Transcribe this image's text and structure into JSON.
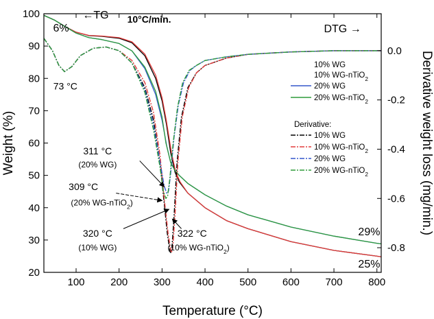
{
  "chart_data": {
    "type": "line",
    "subtitle": "10°C/min.",
    "xlabel": "Temperature (°C)",
    "ylabel_left": "Weight (%)",
    "ylabel_right": "Derivative weight loss (mg/min.)",
    "xlim": [
      25,
      810
    ],
    "ylim_left": [
      20,
      100
    ],
    "ylim_right": [
      -0.9,
      0.15
    ],
    "x_ticks": [
      100,
      200,
      300,
      400,
      500,
      600,
      700,
      800
    ],
    "y_ticks_left": [
      20,
      30,
      40,
      50,
      60,
      70,
      80,
      90,
      100
    ],
    "y_ticks_right": [
      -0.8,
      -0.6,
      -0.4,
      -0.2,
      0.0
    ],
    "y_ticks_right_labels": [
      "-0.8",
      "-0.6",
      "-0.4",
      "-0.2",
      "0.0"
    ],
    "grid": false,
    "legend_position": "right",
    "legend": {
      "tg_entries": [
        "10% WG",
        "10% WG-nTiO2",
        "20% WG",
        "20% WG-nTiO2"
      ],
      "derivative_title": "Derivative:",
      "dtg_entries": [
        "10% WG",
        "10% WG-nTiO2",
        "20% WG",
        "20% WG-nTiO2"
      ]
    },
    "series": [
      {
        "name": "10% WG",
        "kind": "TG",
        "axis": "left",
        "color": "#000000",
        "dash": "solid",
        "x": [
          25,
          50,
          75,
          100,
          130,
          160,
          200,
          230,
          260,
          285,
          300,
          310,
          320,
          330,
          340,
          360,
          400,
          450,
          500,
          600,
          700,
          800,
          810
        ],
        "y": [
          99.5,
          98.0,
          96.0,
          94.3,
          93.2,
          93.0,
          92.4,
          91.0,
          87.0,
          80.0,
          73.0,
          66.0,
          57.0,
          51.0,
          48.0,
          44.5,
          40.0,
          36.0,
          33.5,
          29.5,
          26.8,
          25.0,
          24.8
        ]
      },
      {
        "name": "10% WG-nTiO2",
        "kind": "TG",
        "axis": "left",
        "color": "#e23b3b",
        "dash": "solid",
        "x": [
          25,
          50,
          75,
          100,
          130,
          160,
          200,
          230,
          260,
          285,
          300,
          310,
          322,
          332,
          342,
          360,
          400,
          450,
          500,
          600,
          700,
          800,
          810
        ],
        "y": [
          99.5,
          98.0,
          96.0,
          94.3,
          93.3,
          93.1,
          92.6,
          91.3,
          87.5,
          81.0,
          74.0,
          67.0,
          57.0,
          51.0,
          48.0,
          44.5,
          40.0,
          36.0,
          33.5,
          29.5,
          26.8,
          25.0,
          24.8
        ]
      },
      {
        "name": "20% WG",
        "kind": "TG",
        "axis": "left",
        "color": "#3357cc",
        "dash": "solid",
        "x": [
          25,
          50,
          75,
          100,
          130,
          160,
          200,
          230,
          260,
          285,
          300,
          311,
          320,
          330,
          340,
          360,
          400,
          450,
          500,
          600,
          700,
          800,
          810
        ],
        "y": [
          99.5,
          98.0,
          96.0,
          94.0,
          92.6,
          92.0,
          90.8,
          88.5,
          83.0,
          75.0,
          67.0,
          59.0,
          54.0,
          51.5,
          50.0,
          47.5,
          44.0,
          40.5,
          37.8,
          34.0,
          31.2,
          29.0,
          28.8
        ]
      },
      {
        "name": "20% WG-nTiO2",
        "kind": "TG",
        "axis": "left",
        "color": "#2e9c3a",
        "dash": "solid",
        "x": [
          25,
          50,
          75,
          100,
          130,
          160,
          200,
          230,
          260,
          285,
          300,
          309,
          320,
          330,
          340,
          360,
          400,
          450,
          500,
          600,
          700,
          800,
          810
        ],
        "y": [
          99.5,
          98.0,
          96.0,
          94.0,
          92.6,
          92.0,
          90.8,
          88.5,
          83.5,
          76.0,
          68.0,
          60.0,
          54.0,
          51.5,
          50.0,
          47.5,
          44.0,
          40.5,
          37.8,
          34.0,
          31.2,
          29.0,
          28.8
        ]
      },
      {
        "name": "10% WG",
        "kind": "DTG",
        "axis": "right",
        "color": "#000000",
        "dash": "dashdot",
        "x": [
          25,
          45,
          60,
          73,
          90,
          110,
          140,
          170,
          200,
          230,
          260,
          280,
          295,
          305,
          312,
          318,
          320,
          323,
          328,
          335,
          345,
          360,
          380,
          400,
          450,
          500,
          600,
          700,
          800,
          810
        ],
        "y": [
          0.05,
          0.0,
          -0.06,
          -0.085,
          -0.065,
          -0.02,
          0.01,
          0.015,
          0.0,
          -0.05,
          -0.15,
          -0.28,
          -0.45,
          -0.62,
          -0.74,
          -0.81,
          -0.82,
          -0.8,
          -0.67,
          -0.45,
          -0.27,
          -0.15,
          -0.09,
          -0.06,
          -0.03,
          -0.015,
          -0.005,
          0.0,
          0.0,
          0.0
        ]
      },
      {
        "name": "10% WG-nTiO2",
        "kind": "DTG",
        "axis": "right",
        "color": "#e23b3b",
        "dash": "dashdot",
        "x": [
          25,
          45,
          60,
          73,
          90,
          110,
          140,
          170,
          200,
          230,
          260,
          280,
          295,
          305,
          314,
          320,
          322,
          325,
          330,
          337,
          347,
          362,
          380,
          400,
          450,
          500,
          600,
          700,
          800,
          810
        ],
        "y": [
          0.05,
          0.0,
          -0.06,
          -0.085,
          -0.065,
          -0.02,
          0.01,
          0.015,
          0.0,
          -0.04,
          -0.13,
          -0.25,
          -0.42,
          -0.6,
          -0.74,
          -0.81,
          -0.82,
          -0.8,
          -0.67,
          -0.45,
          -0.27,
          -0.15,
          -0.09,
          -0.06,
          -0.03,
          -0.015,
          -0.005,
          0.0,
          0.0,
          0.0
        ]
      },
      {
        "name": "20% WG",
        "kind": "DTG",
        "axis": "right",
        "color": "#3357cc",
        "dash": "dashdot",
        "x": [
          25,
          45,
          60,
          73,
          90,
          110,
          140,
          170,
          200,
          230,
          260,
          280,
          295,
          305,
          311,
          315,
          320,
          328,
          338,
          350,
          365,
          380,
          400,
          450,
          500,
          600,
          700,
          800,
          810
        ],
        "y": [
          0.05,
          0.0,
          -0.06,
          -0.085,
          -0.065,
          -0.02,
          0.01,
          0.015,
          0.0,
          -0.05,
          -0.16,
          -0.3,
          -0.45,
          -0.55,
          -0.58,
          -0.57,
          -0.5,
          -0.35,
          -0.22,
          -0.13,
          -0.08,
          -0.06,
          -0.04,
          -0.025,
          -0.015,
          -0.005,
          0.0,
          0.0,
          0.0
        ]
      },
      {
        "name": "20% WG-nTiO2",
        "kind": "DTG",
        "axis": "right",
        "color": "#2e9c3a",
        "dash": "dashdot",
        "x": [
          25,
          45,
          60,
          73,
          90,
          110,
          140,
          170,
          200,
          230,
          260,
          280,
          295,
          303,
          309,
          313,
          318,
          326,
          336,
          348,
          363,
          380,
          400,
          450,
          500,
          600,
          700,
          800,
          810
        ],
        "y": [
          0.05,
          0.0,
          -0.06,
          -0.085,
          -0.065,
          -0.02,
          0.01,
          0.015,
          0.0,
          -0.05,
          -0.17,
          -0.32,
          -0.47,
          -0.57,
          -0.6,
          -0.59,
          -0.52,
          -0.37,
          -0.23,
          -0.13,
          -0.08,
          -0.06,
          -0.04,
          -0.025,
          -0.015,
          -0.005,
          0.0,
          0.0,
          0.0
        ]
      }
    ],
    "annotations": [
      {
        "text": "6%",
        "x": 65,
        "y": 94.5,
        "axis": "left",
        "size": 16,
        "anchor": "middle"
      },
      {
        "text": "←TG",
        "x": 115,
        "y": 98.5,
        "axis": "left",
        "size": 16,
        "anchor": "start"
      },
      {
        "text": "10°C/min.",
        "x": 270,
        "y": 97.2,
        "axis": "left",
        "size": 14,
        "anchor": "middle",
        "bold": true
      },
      {
        "text": "DTG →",
        "x": 720,
        "y": 0.075,
        "axis": "right",
        "size": 16,
        "anchor": "middle"
      },
      {
        "text": "73 °C",
        "x": 75,
        "y": 76.5,
        "axis": "left",
        "size": 14,
        "anchor": "middle"
      },
      {
        "text": "311 °C",
        "x": 150,
        "y": 56.5,
        "axis": "left",
        "size": 14,
        "anchor": "middle"
      },
      {
        "text": "(20% WG)",
        "x": 150,
        "y": 52.5,
        "axis": "left",
        "size": 12,
        "anchor": "middle"
      },
      {
        "text": "309 °C",
        "x": 117,
        "y": 45.5,
        "axis": "left",
        "size": 14,
        "anchor": "middle"
      },
      {
        "text": "(20% WG-nTiO2)",
        "x": 160,
        "y": 40.7,
        "axis": "left",
        "size": 12,
        "anchor": "middle"
      },
      {
        "text": "320 °C",
        "x": 150,
        "y": 31.0,
        "axis": "left",
        "size": 14,
        "anchor": "middle"
      },
      {
        "text": "(10% WG)",
        "x": 150,
        "y": 26.8,
        "axis": "left",
        "size": 12,
        "anchor": "middle"
      },
      {
        "text": "322 °C",
        "x": 370,
        "y": 31.0,
        "axis": "left",
        "size": 14,
        "anchor": "middle"
      },
      {
        "text": "(10% WG-nTiO2)",
        "x": 385,
        "y": 26.8,
        "axis": "left",
        "size": 12,
        "anchor": "middle"
      },
      {
        "text": "29%",
        "x": 782,
        "y": 31.5,
        "axis": "left",
        "size": 16,
        "anchor": "middle"
      },
      {
        "text": "25%",
        "x": 782,
        "y": 21.5,
        "axis": "left",
        "size": 16,
        "anchor": "middle"
      }
    ],
    "arrows": [
      {
        "from": [
          248,
          54.5
        ],
        "to": [
          305,
          46.5
        ],
        "dashed": false
      },
      {
        "from": [
          193,
          44.5
        ],
        "to": [
          300,
          42.2
        ],
        "dashed": true
      },
      {
        "from": [
          210,
          33.5
        ],
        "to": [
          316,
          39.5
        ],
        "dashed": false
      },
      {
        "from": [
          345,
          33.5
        ],
        "to": [
          324,
          36.5
        ],
        "dashed": false
      }
    ]
  }
}
